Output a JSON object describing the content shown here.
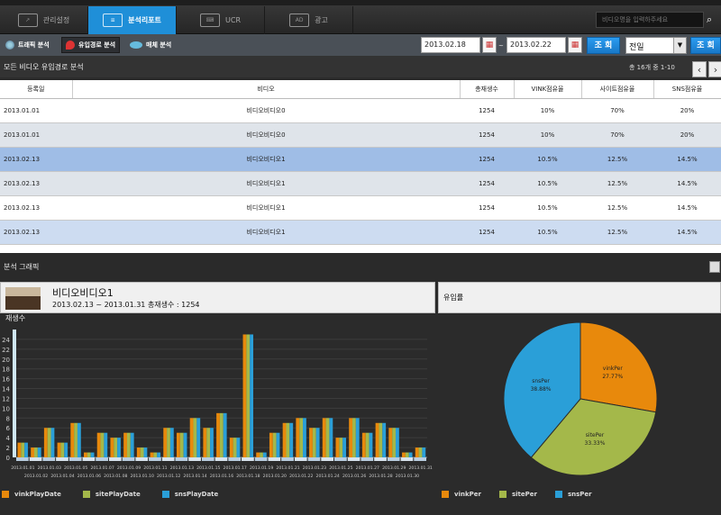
{
  "tabs": [
    {
      "label": "관리설정",
      "icon": "chart-icon"
    },
    {
      "label": "분석리포트",
      "icon": "report-icon"
    },
    {
      "label": "UCR",
      "icon": "keyboard-icon"
    },
    {
      "label": "광고",
      "icon": "ad-icon"
    }
  ],
  "search": {
    "placeholder": "비디오명을 입력하주세요"
  },
  "subnav": [
    {
      "label": "트래픽 분석"
    },
    {
      "label": "유입경로 분석"
    },
    {
      "label": "매체 분석"
    }
  ],
  "filter": {
    "start_date": "2013.02.18",
    "end_date": "2013.02.22",
    "search_label": "조 회",
    "period": "전일",
    "search_label2": "조 회",
    "date_sep": "~"
  },
  "table_section": {
    "title": "모든 비디오 유입경로 분석",
    "pager": "총 16개 중 1-10",
    "columns": [
      "등록일",
      "비디오",
      "총재생수",
      "VINK점유율",
      "사이트점유율",
      "SNS점유율"
    ],
    "rows": [
      [
        "2013.01.01",
        "비디오비디오0",
        "1254",
        "10%",
        "70%",
        "20%"
      ],
      [
        "2013.01.01",
        "비디오비디오0",
        "1254",
        "10%",
        "70%",
        "20%"
      ],
      [
        "2013.02.13",
        "비디오비디오1",
        "1254",
        "10.5%",
        "12.5%",
        "14.5%"
      ],
      [
        "2013.02.13",
        "비디오비디오1",
        "1254",
        "10.5%",
        "12.5%",
        "14.5%"
      ],
      [
        "2013.02.13",
        "비디오비디오1",
        "1254",
        "10.5%",
        "12.5%",
        "14.5%"
      ],
      [
        "2013.02.13",
        "비디오비디오1",
        "1254",
        "10.5%",
        "12.5%",
        "14.5%"
      ],
      [
        "2013.02.13",
        "비디오비디오1",
        "1254",
        "10.5%",
        "12.5%",
        "14.5%"
      ]
    ]
  },
  "graph_section": {
    "title": "분석 그래픽",
    "video_title": "비디오비디오1",
    "video_meta": "2013.02.13 ~ 2013.01.31  총재생수 : 1254",
    "inflow_title": "유입률"
  },
  "colors": {
    "vink": "#e8890c",
    "site": "#a4b84a",
    "sns": "#2a9fd8",
    "accent": "#1f8fd8"
  },
  "chart_data": [
    {
      "type": "bar",
      "ylabel": "재생수",
      "ylim": [
        0,
        26
      ],
      "yticks": [
        0,
        2,
        4,
        6,
        8,
        10,
        12,
        14,
        16,
        18,
        20,
        22,
        24
      ],
      "grid": true,
      "legend": "bottom-left",
      "categories": [
        "2013.01.01",
        "2013.01.02",
        "2013.01.03",
        "2013.01.04",
        "2013.01.05",
        "2013.01.06",
        "2013.01.07",
        "2013.01.08",
        "2013.01.09",
        "2013.01.10",
        "2013.01.11",
        "2013.01.12",
        "2013.01.13",
        "2013.01.14",
        "2013.01.15",
        "2013.01.16",
        "2013.01.17",
        "2013.01.18",
        "2013.01.19",
        "2013.01.20",
        "2013.01.21",
        "2013.01.22",
        "2013.01.23",
        "2013.01.24",
        "2013.01.25",
        "2013.01.26",
        "2013.01.27",
        "2013.01.28",
        "2013.01.29",
        "2013.01.30",
        "2013.01.31"
      ],
      "series": [
        {
          "name": "vinkPlayDate",
          "values": [
            3,
            2,
            6,
            3,
            7,
            1,
            5,
            4,
            5,
            2,
            1,
            6,
            5,
            8,
            6,
            9,
            4,
            25,
            1,
            5,
            7,
            8,
            6,
            8,
            4,
            8,
            5,
            7,
            6,
            1,
            2
          ]
        },
        {
          "name": "sitePlayDate",
          "values": [
            3,
            2,
            6,
            3,
            7,
            1,
            5,
            4,
            5,
            2,
            1,
            6,
            5,
            8,
            6,
            9,
            4,
            25,
            1,
            5,
            7,
            8,
            6,
            8,
            4,
            8,
            5,
            7,
            6,
            1,
            2
          ]
        },
        {
          "name": "snsPlayDate",
          "values": [
            3,
            2,
            6,
            3,
            7,
            1,
            5,
            4,
            5,
            2,
            1,
            6,
            5,
            8,
            6,
            9,
            4,
            25,
            1,
            5,
            7,
            8,
            6,
            8,
            4,
            8,
            5,
            7,
            6,
            1,
            2
          ]
        }
      ]
    },
    {
      "type": "pie",
      "legend": "bottom-left",
      "categories": [
        "vinkPer",
        "sitePer",
        "snsPer"
      ],
      "values": [
        27.77,
        33.33,
        38.88
      ],
      "labels": [
        "27.77%",
        "33.33%",
        "38.88%"
      ]
    }
  ]
}
